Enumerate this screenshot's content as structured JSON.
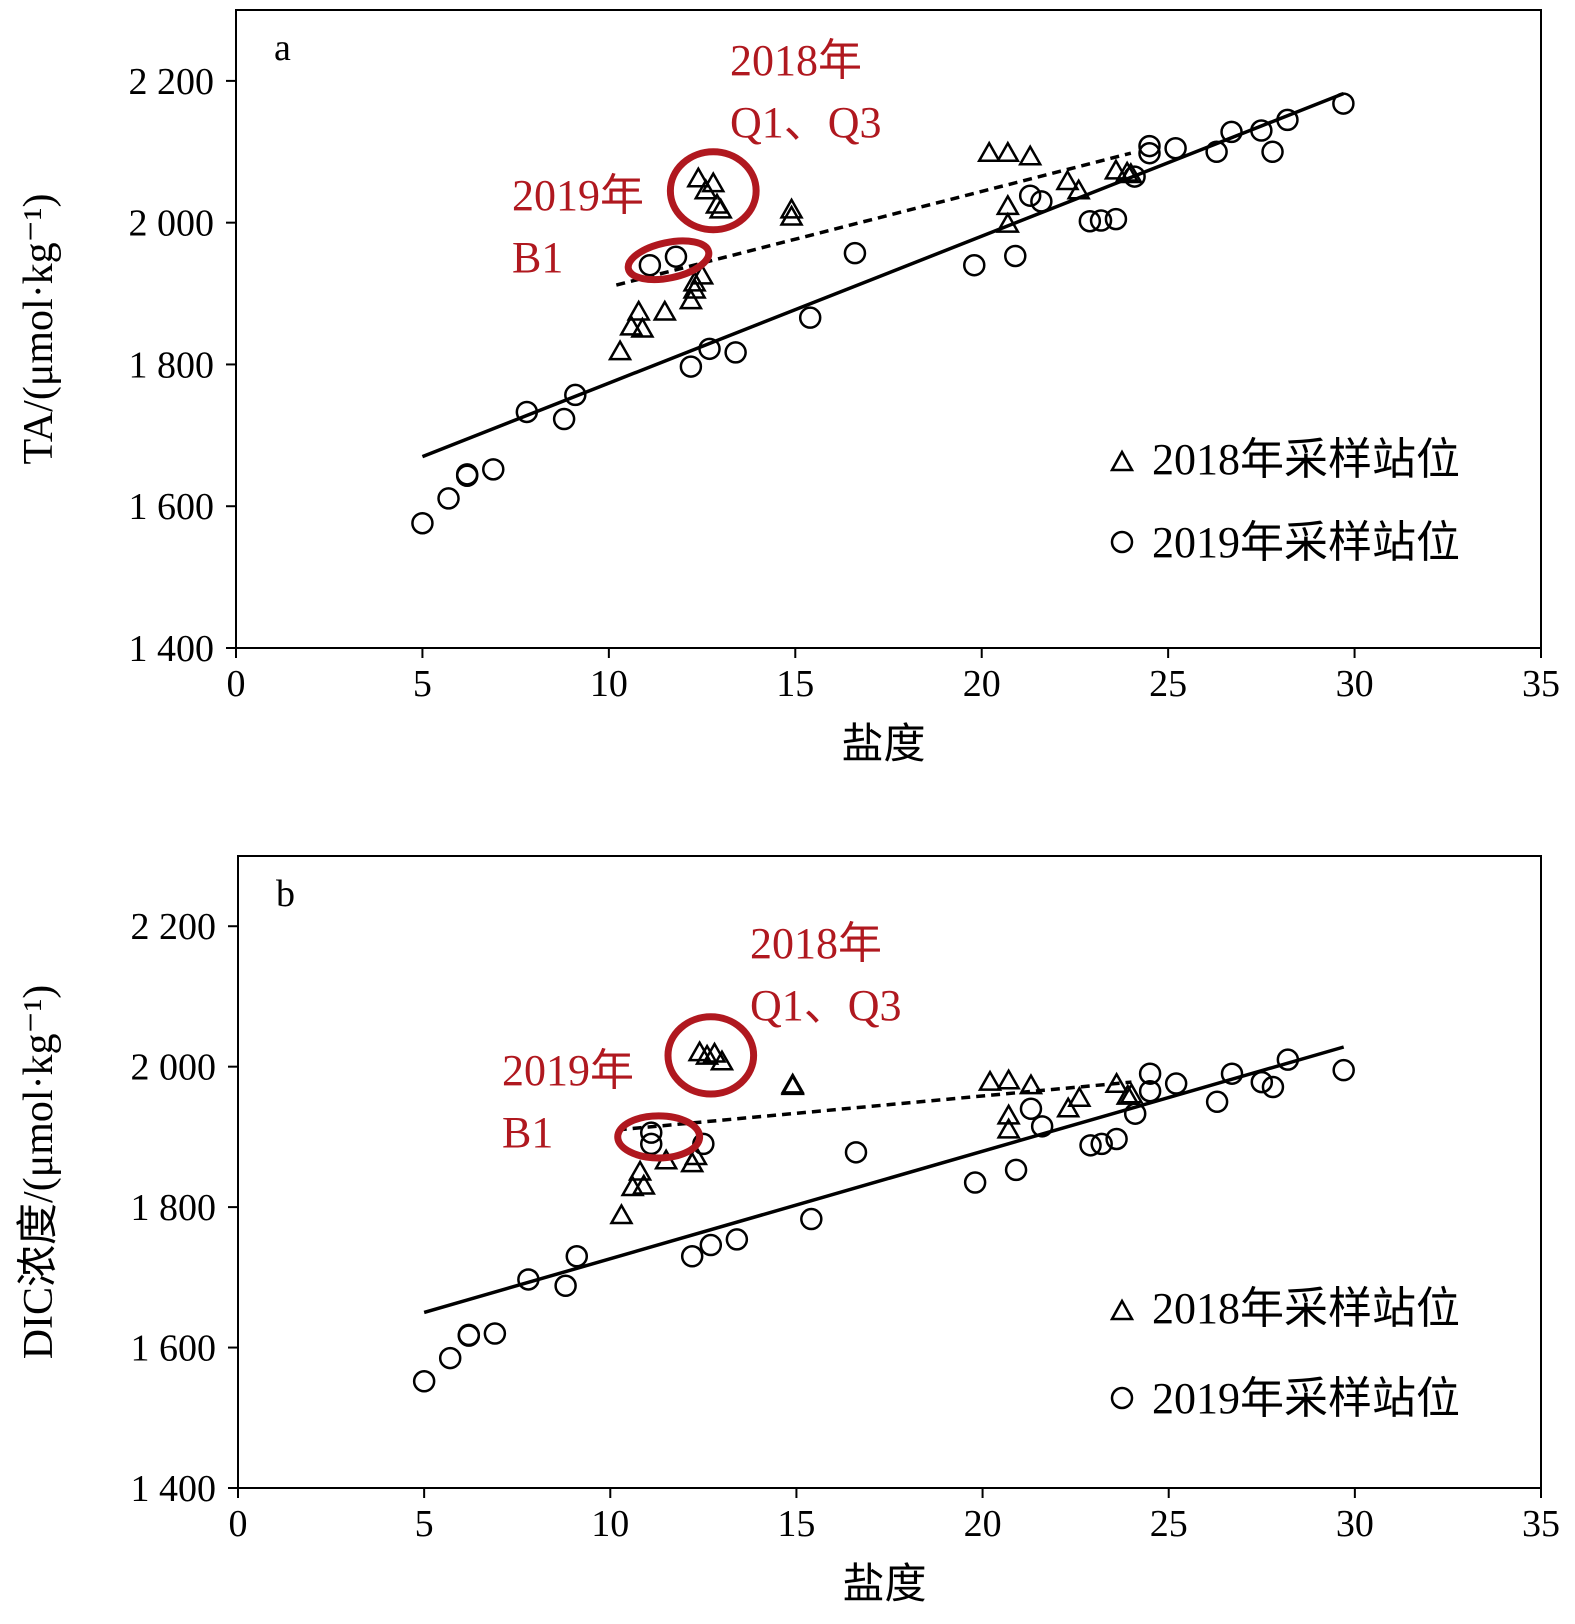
{
  "chart_data": [
    {
      "type": "scatter",
      "panel": "a",
      "xlabel": "盐度",
      "ylabel": "TA/(μmol·kg⁻¹)",
      "xlim": [
        0,
        35
      ],
      "ylim": [
        1400,
        2300
      ],
      "xticks": [
        0,
        5,
        10,
        15,
        20,
        25,
        30,
        35
      ],
      "xtick_labels": [
        "0",
        "5",
        "10",
        "15",
        "20",
        "25",
        "30",
        "35"
      ],
      "yticks": [
        1400,
        1600,
        1800,
        2000,
        2200
      ],
      "ytick_labels": [
        "1 400",
        "1 600",
        "1 800",
        "2 000",
        "2 200"
      ],
      "grid": false,
      "legend_position": "bottom-right",
      "series": [
        {
          "name": "2018年采样站位",
          "marker": "triangle",
          "points": [
            [
              10.3,
              1818
            ],
            [
              10.6,
              1853
            ],
            [
              10.8,
              1874
            ],
            [
              10.9,
              1850
            ],
            [
              11.5,
              1874
            ],
            [
              12.2,
              1890
            ],
            [
              12.3,
              1915
            ],
            [
              12.3,
              1905
            ],
            [
              12.5,
              1925
            ],
            [
              12.4,
              2062
            ],
            [
              12.6,
              2045
            ],
            [
              12.8,
              2055
            ],
            [
              12.9,
              2025
            ],
            [
              13.0,
              2018
            ],
            [
              14.9,
              2018
            ],
            [
              14.9,
              2008
            ],
            [
              20.2,
              2098
            ],
            [
              20.7,
              2098
            ],
            [
              21.3,
              2093
            ],
            [
              20.7,
              2023
            ],
            [
              20.7,
              1998
            ],
            [
              22.3,
              2058
            ],
            [
              22.6,
              2045
            ],
            [
              23.6,
              2073
            ],
            [
              23.9,
              2070
            ],
            [
              24.0,
              2068
            ]
          ],
          "fit": {
            "style": "dashed",
            "x": [
              10.2,
              24.0
            ],
            "y": [
              1912,
              2098
            ]
          }
        },
        {
          "name": "2019年采样站位",
          "marker": "circle",
          "points": [
            [
              5.0,
              1576
            ],
            [
              5.7,
              1611
            ],
            [
              6.2,
              1643
            ],
            [
              6.2,
              1645
            ],
            [
              6.9,
              1652
            ],
            [
              7.8,
              1733
            ],
            [
              8.8,
              1723
            ],
            [
              9.1,
              1757
            ],
            [
              11.1,
              1940
            ],
            [
              11.8,
              1952
            ],
            [
              12.2,
              1797
            ],
            [
              12.7,
              1822
            ],
            [
              13.4,
              1817
            ],
            [
              15.4,
              1866
            ],
            [
              16.6,
              1957
            ],
            [
              19.8,
              1940
            ],
            [
              20.9,
              1953
            ],
            [
              21.3,
              2038
            ],
            [
              21.6,
              2030
            ],
            [
              22.9,
              2002
            ],
            [
              23.2,
              2003
            ],
            [
              23.6,
              2005
            ],
            [
              24.1,
              2065
            ],
            [
              24.5,
              2098
            ],
            [
              24.5,
              2108
            ],
            [
              25.2,
              2105
            ],
            [
              26.3,
              2100
            ],
            [
              26.7,
              2128
            ],
            [
              27.5,
              2130
            ],
            [
              27.8,
              2100
            ],
            [
              28.2,
              2145
            ],
            [
              29.7,
              2168
            ]
          ],
          "fit": {
            "style": "solid",
            "x": [
              5.0,
              29.7
            ],
            "y": [
              1670,
              2182
            ]
          }
        }
      ],
      "annotations": [
        {
          "lines": [
            "2018年",
            "Q1、Q3"
          ],
          "color": "#b0181f",
          "circle_center": [
            12.8,
            2045
          ],
          "circle_radius": [
            1.15,
            55
          ]
        },
        {
          "lines": [
            "2019年",
            "B1"
          ],
          "color": "#b0181f",
          "circle_center": [
            11.6,
            1947
          ],
          "circle_radius": [
            1.1,
            25
          ]
        }
      ]
    },
    {
      "type": "scatter",
      "panel": "b",
      "xlabel": "盐度",
      "ylabel": "DIC浓度/(μmol·kg⁻¹)",
      "xlim": [
        0,
        35
      ],
      "ylim": [
        1400,
        2300
      ],
      "xticks": [
        0,
        5,
        10,
        15,
        20,
        25,
        30,
        35
      ],
      "xtick_labels": [
        "0",
        "5",
        "10",
        "15",
        "20",
        "25",
        "30",
        "35"
      ],
      "yticks": [
        1400,
        1600,
        1800,
        2000,
        2200
      ],
      "ytick_labels": [
        "1 400",
        "1 600",
        "1 800",
        "2 000",
        "2 200"
      ],
      "grid": false,
      "legend_position": "bottom-right",
      "series": [
        {
          "name": "2018年采样站位",
          "marker": "triangle",
          "points": [
            [
              10.3,
              1788
            ],
            [
              10.6,
              1828
            ],
            [
              10.8,
              1850
            ],
            [
              10.9,
              1830
            ],
            [
              11.5,
              1866
            ],
            [
              12.2,
              1862
            ],
            [
              12.3,
              1872
            ],
            [
              12.4,
              2020
            ],
            [
              12.6,
              2015
            ],
            [
              12.8,
              2018
            ],
            [
              13.0,
              2007
            ],
            [
              14.9,
              1974
            ],
            [
              14.9,
              1972
            ],
            [
              20.2,
              1978
            ],
            [
              20.7,
              1980
            ],
            [
              21.3,
              1973
            ],
            [
              20.7,
              1930
            ],
            [
              20.7,
              1910
            ],
            [
              22.3,
              1940
            ],
            [
              22.6,
              1955
            ],
            [
              23.6,
              1975
            ],
            [
              23.9,
              1958
            ],
            [
              24.0,
              1960
            ]
          ],
          "fit": {
            "style": "dashed",
            "x": [
              10.2,
              24.0
            ],
            "y": [
              1910,
              1978
            ]
          }
        },
        {
          "name": "2019年采样站位",
          "marker": "circle",
          "points": [
            [
              5.0,
              1552
            ],
            [
              5.7,
              1585
            ],
            [
              6.2,
              1617
            ],
            [
              6.2,
              1618
            ],
            [
              6.9,
              1620
            ],
            [
              7.8,
              1697
            ],
            [
              8.8,
              1688
            ],
            [
              9.1,
              1730
            ],
            [
              11.1,
              1906
            ],
            [
              11.1,
              1890
            ],
            [
              12.2,
              1730
            ],
            [
              12.5,
              1890
            ],
            [
              12.7,
              1746
            ],
            [
              13.4,
              1754
            ],
            [
              15.4,
              1783
            ],
            [
              16.6,
              1878
            ],
            [
              19.8,
              1835
            ],
            [
              20.9,
              1853
            ],
            [
              21.3,
              1940
            ],
            [
              21.6,
              1915
            ],
            [
              22.9,
              1888
            ],
            [
              23.2,
              1890
            ],
            [
              23.6,
              1897
            ],
            [
              24.1,
              1933
            ],
            [
              24.5,
              1965
            ],
            [
              24.5,
              1990
            ],
            [
              25.2,
              1976
            ],
            [
              26.3,
              1950
            ],
            [
              26.7,
              1990
            ],
            [
              27.5,
              1978
            ],
            [
              27.8,
              1971
            ],
            [
              28.2,
              2010
            ],
            [
              29.7,
              1995
            ]
          ],
          "fit": {
            "style": "solid",
            "x": [
              5.0,
              29.7
            ],
            "y": [
              1650,
              2028
            ]
          }
        }
      ],
      "annotations": [
        {
          "lines": [
            "2018年",
            "Q1、Q3"
          ],
          "color": "#b0181f",
          "circle_center": [
            12.7,
            2016
          ],
          "circle_radius": [
            1.15,
            55
          ]
        },
        {
          "lines": [
            "2019年",
            "B1"
          ],
          "color": "#b0181f",
          "circle_center": [
            11.3,
            1900
          ],
          "circle_radius": [
            1.1,
            30
          ]
        }
      ]
    }
  ]
}
